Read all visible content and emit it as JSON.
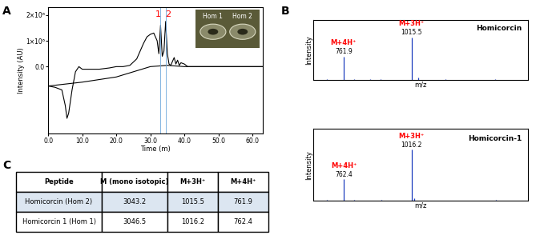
{
  "panel_labels": [
    "A",
    "B",
    "C"
  ],
  "chart_data": [
    {
      "type": "line",
      "x_label": "Time (m)",
      "y_label": "Intensity (AU)",
      "series": [
        {
          "color": "#000000",
          "x": [
            0,
            2,
            4,
            5,
            5.5,
            6,
            7,
            8,
            9,
            10,
            12,
            15,
            18,
            20,
            22,
            24,
            26,
            27,
            28,
            29,
            30,
            31,
            32,
            32.5,
            33,
            33.5,
            34,
            34.5,
            35,
            35.5,
            36,
            37,
            37.5,
            38,
            38.5,
            39,
            40,
            41,
            42,
            45,
            50,
            55,
            60,
            63
          ],
          "values": [
            -750000,
            -800000,
            -900000,
            -1500000,
            -2000000,
            -1800000,
            -900000,
            -200000,
            0,
            -100000,
            -100000,
            -100000,
            -50000,
            0,
            0,
            50000,
            300000,
            600000,
            900000,
            1150000,
            1250000,
            1300000,
            1000000,
            500000,
            1600000,
            400000,
            600000,
            1750000,
            500000,
            100000,
            50000,
            350000,
            100000,
            250000,
            50000,
            150000,
            100000,
            0,
            0,
            0,
            0,
            0,
            0,
            0
          ]
        },
        {
          "color": "#000000",
          "x": [
            0,
            10,
            20,
            25,
            30,
            35,
            40,
            50,
            60,
            63
          ],
          "values": [
            -750000,
            -600000,
            -400000,
            -200000,
            0,
            50000,
            0,
            0,
            0,
            0
          ]
        }
      ],
      "xlim": [
        0,
        63
      ],
      "ylim": [
        -2600000,
        2300000
      ],
      "xticks": [
        {
          "value": 0,
          "label": "0.0"
        },
        {
          "value": 10,
          "label": "10.0"
        },
        {
          "value": 20,
          "label": "20.0"
        },
        {
          "value": 30,
          "label": "30.0"
        },
        {
          "value": 40,
          "label": "40.0"
        },
        {
          "value": 50,
          "label": "50.0"
        },
        {
          "value": 60,
          "label": "60.0"
        }
      ],
      "yticks": [
        {
          "value": 0,
          "label": "0.0"
        },
        {
          "value": 1000000,
          "label": "1×10⁶"
        },
        {
          "value": 2000000,
          "label": "2×10⁶"
        }
      ],
      "annotations": [
        {
          "x": 33,
          "text": "1"
        },
        {
          "x": 34.5,
          "text": "2"
        }
      ],
      "inset": {
        "labels": [
          "Hom 1",
          "Hom 2"
        ]
      }
    },
    {
      "type": "stem",
      "title": "Homicorcin",
      "x_label": "m/z",
      "y_label": "Intensity",
      "x": [
        700,
        761.9,
        800,
        860,
        900,
        1015.5,
        1040,
        1141,
        1327
      ],
      "values": [
        0.02,
        0.55,
        0.03,
        0.02,
        0.03,
        1.0,
        0.06,
        0.03,
        0.02
      ],
      "xlim": [
        650,
        1450
      ],
      "ylim": [
        0,
        1.4
      ],
      "tick_labels": false,
      "color": "#1f3fbf",
      "annotations": [
        {
          "x": 761.9,
          "text": "M+4H⁺"
        },
        {
          "x": 1015.5,
          "text": "M+3H⁺"
        }
      ]
    },
    {
      "type": "stem",
      "title": "Homicorcin-1",
      "x_label": "m/z",
      "y_label": "Intensity",
      "x": [
        700,
        762.4,
        800,
        903,
        1016.2,
        1026,
        1330
      ],
      "values": [
        0.02,
        0.42,
        0.02,
        0.02,
        1.0,
        0.05,
        0.02
      ],
      "xlim": [
        650,
        1450
      ],
      "ylim": [
        0,
        1.4
      ],
      "tick_labels": false,
      "color": "#1f3fbf",
      "annotations": [
        {
          "x": 762.4,
          "text": "M+4H⁺"
        },
        {
          "x": 1016.2,
          "text": "M+3H⁺"
        }
      ]
    }
  ],
  "table": {
    "header": [
      "Peptide",
      "M (mono isotopic)",
      "M+3H⁺",
      "M+4H⁺"
    ],
    "rows": [
      [
        "Homicorcin (Hom 2)",
        3043.2,
        1015.5,
        761.9
      ],
      [
        "Homicorcin 1 (Hom 1)",
        3046.5,
        1016.2,
        762.4
      ]
    ]
  }
}
